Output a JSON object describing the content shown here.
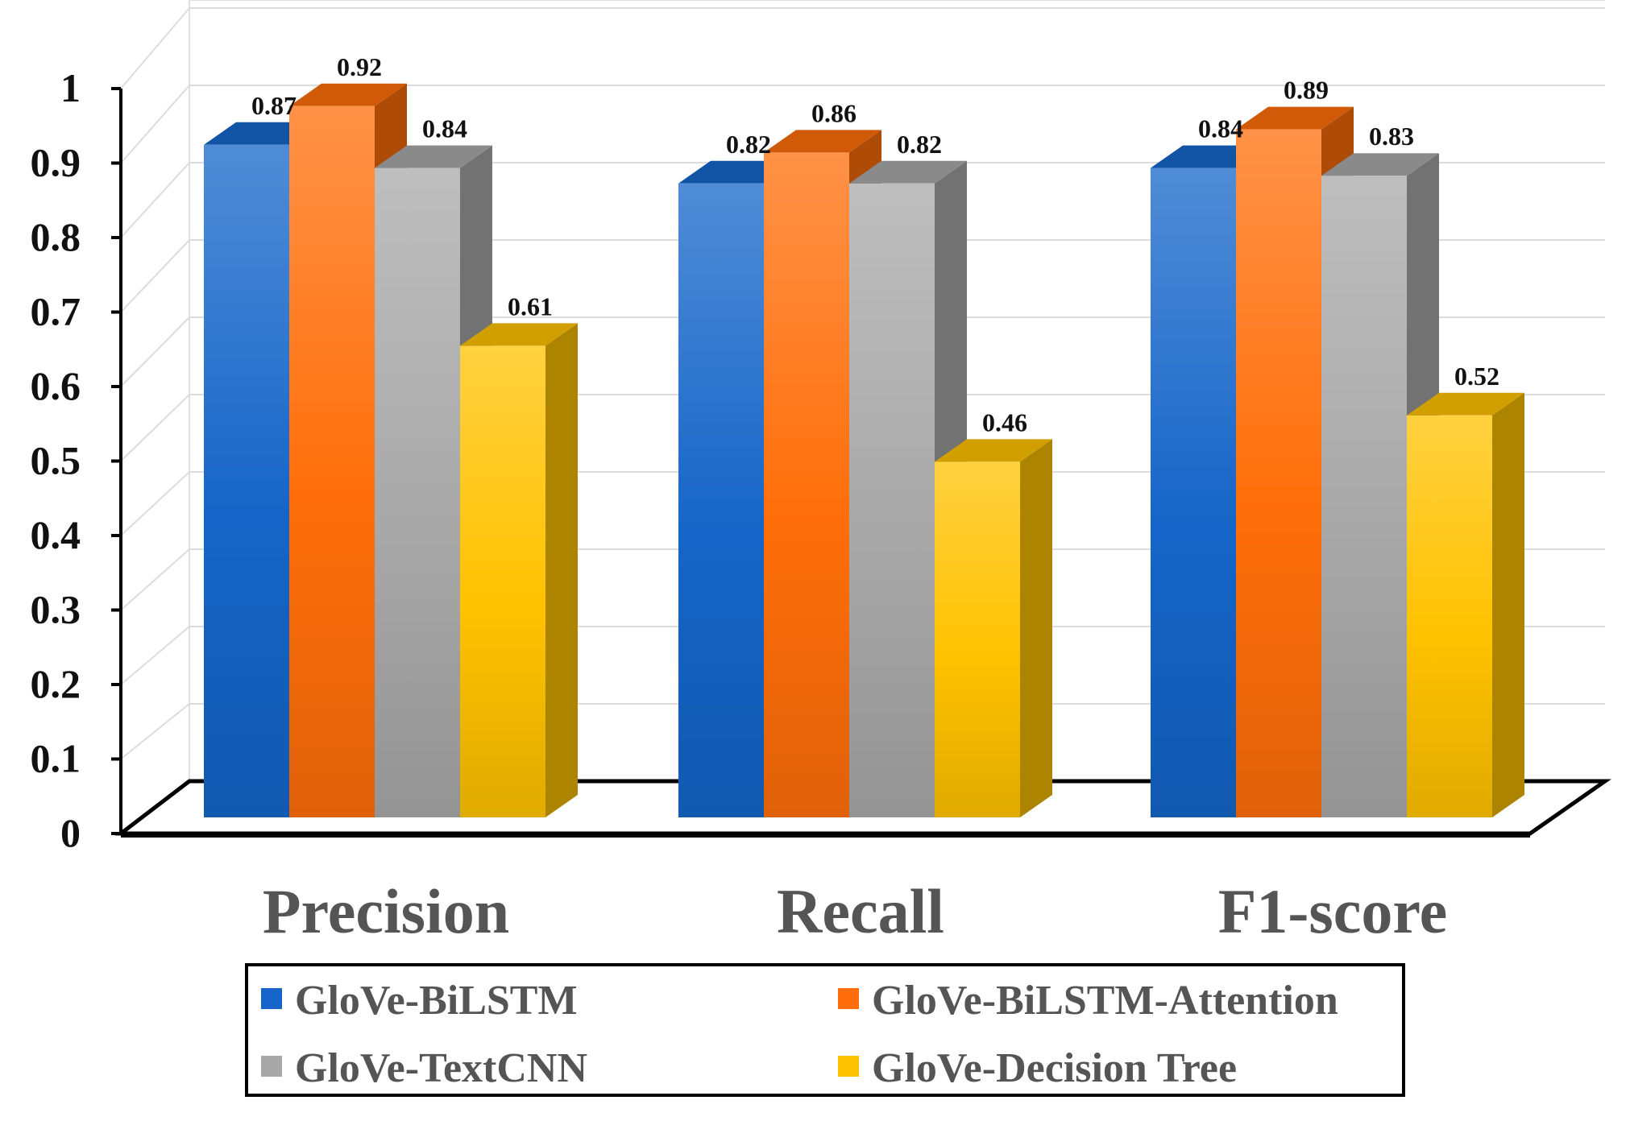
{
  "chart_data": {
    "type": "bar",
    "title": "",
    "xlabel": "",
    "ylabel": "",
    "ylim": [
      0,
      1
    ],
    "yticks": [
      "0",
      "0.1",
      "0.2",
      "0.3",
      "0.4",
      "0.5",
      "0.6",
      "0.7",
      "0.8",
      "0.9",
      "1"
    ],
    "categories": [
      "Precision",
      "Recall",
      "F1-score"
    ],
    "series": [
      {
        "name": "GloVe-BiLSTM",
        "values": [
          0.87,
          0.82,
          0.84
        ],
        "labels": [
          "0.87",
          "0.82",
          "0.84"
        ],
        "color": "#1565c8"
      },
      {
        "name": "GloVe-BiLSTM-Attention",
        "values": [
          0.92,
          0.86,
          0.89
        ],
        "labels": [
          "0.92",
          "0.86",
          "0.89"
        ],
        "color": "#ff6e0a"
      },
      {
        "name": "GloVe-TextCNN",
        "values": [
          0.84,
          0.82,
          0.83
        ],
        "labels": [
          "0.84",
          "0.82",
          "0.83"
        ],
        "color": "#a8a8a8"
      },
      {
        "name": "GloVe-Decision Tree",
        "values": [
          0.61,
          0.46,
          0.52
        ],
        "labels": [
          "0.61",
          "0.46",
          "0.52"
        ],
        "color": "#ffc200"
      }
    ],
    "grid": true,
    "style": "3d-clustered-column",
    "legend_position": "bottom"
  }
}
